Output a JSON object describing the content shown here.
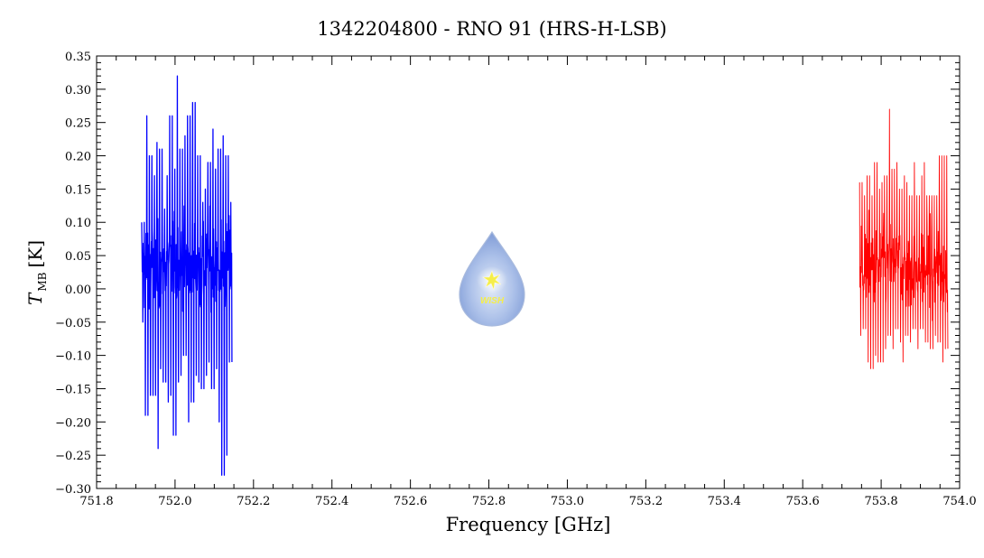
{
  "chart_data": {
    "type": "line",
    "title": "1342204800 - RNO 91 (HRS-H-LSB)",
    "xlabel": "Frequency [GHz]",
    "ylabel_main": "T",
    "ylabel_sub": "MB",
    "ylabel_unit": "[K]",
    "xlim": [
      751.8,
      754.0
    ],
    "ylim": [
      -0.3,
      0.35
    ],
    "x_ticks": [
      "751.8",
      "752.0",
      "752.2",
      "752.4",
      "752.6",
      "752.8",
      "753.0",
      "753.2",
      "753.4",
      "753.6",
      "753.8",
      "754.0"
    ],
    "x_tick_values": [
      751.8,
      752.0,
      752.2,
      752.4,
      752.6,
      752.8,
      753.0,
      753.2,
      753.4,
      753.6,
      753.8,
      754.0
    ],
    "y_ticks": [
      "−0.30",
      "−0.25",
      "−0.20",
      "−0.15",
      "−0.10",
      "−0.05",
      "0.00",
      "0.05",
      "0.10",
      "0.15",
      "0.20",
      "0.25",
      "0.30",
      "0.35"
    ],
    "y_tick_values": [
      -0.3,
      -0.25,
      -0.2,
      -0.15,
      -0.1,
      -0.05,
      0.0,
      0.05,
      0.1,
      0.15,
      0.2,
      0.25,
      0.3,
      0.35
    ],
    "series": [
      {
        "color": "#0000ff",
        "x_range": [
          751.915,
          752.145
        ],
        "envelope_max": [
          0.1,
          0.26,
          0.2,
          0.17,
          0.22,
          0.21,
          0.12,
          0.17,
          0.26,
          0.18,
          0.32,
          0.21,
          0.23,
          0.26,
          0.28,
          0.28,
          0.2,
          0.13,
          0.15,
          0.19,
          0.24,
          0.18,
          0.21,
          0.23,
          0.2,
          0.13
        ],
        "envelope_min": [
          -0.05,
          -0.19,
          -0.16,
          -0.16,
          -0.24,
          -0.12,
          -0.14,
          -0.17,
          -0.16,
          -0.22,
          -0.14,
          -0.13,
          -0.1,
          -0.2,
          -0.17,
          -0.13,
          -0.14,
          -0.15,
          -0.13,
          -0.11,
          -0.15,
          -0.12,
          -0.2,
          -0.28,
          -0.25,
          -0.11
        ]
      },
      {
        "color": "#ff0000",
        "x_range": [
          753.745,
          753.97
        ],
        "envelope_max": [
          0.16,
          0.14,
          0.17,
          0.14,
          0.19,
          0.15,
          0.16,
          0.17,
          0.27,
          0.18,
          0.19,
          0.15,
          0.17,
          0.16,
          0.14,
          0.19,
          0.14,
          0.17,
          0.19,
          0.14,
          0.14,
          0.14,
          0.2,
          0.2,
          0.2
        ],
        "envelope_min": [
          -0.07,
          -0.06,
          -0.11,
          -0.12,
          -0.1,
          -0.11,
          -0.11,
          -0.09,
          -0.07,
          -0.09,
          -0.06,
          -0.08,
          -0.11,
          -0.07,
          -0.08,
          -0.06,
          -0.09,
          -0.06,
          -0.08,
          -0.08,
          -0.09,
          -0.07,
          -0.08,
          -0.11,
          -0.09
        ]
      }
    ],
    "grid": false,
    "legend": "none"
  },
  "watermark": {
    "text": "WISH",
    "colors": {
      "drop_top": "#e8eef8",
      "drop_bottom": "#6f8fcf",
      "star": "#f5ee4a"
    }
  }
}
